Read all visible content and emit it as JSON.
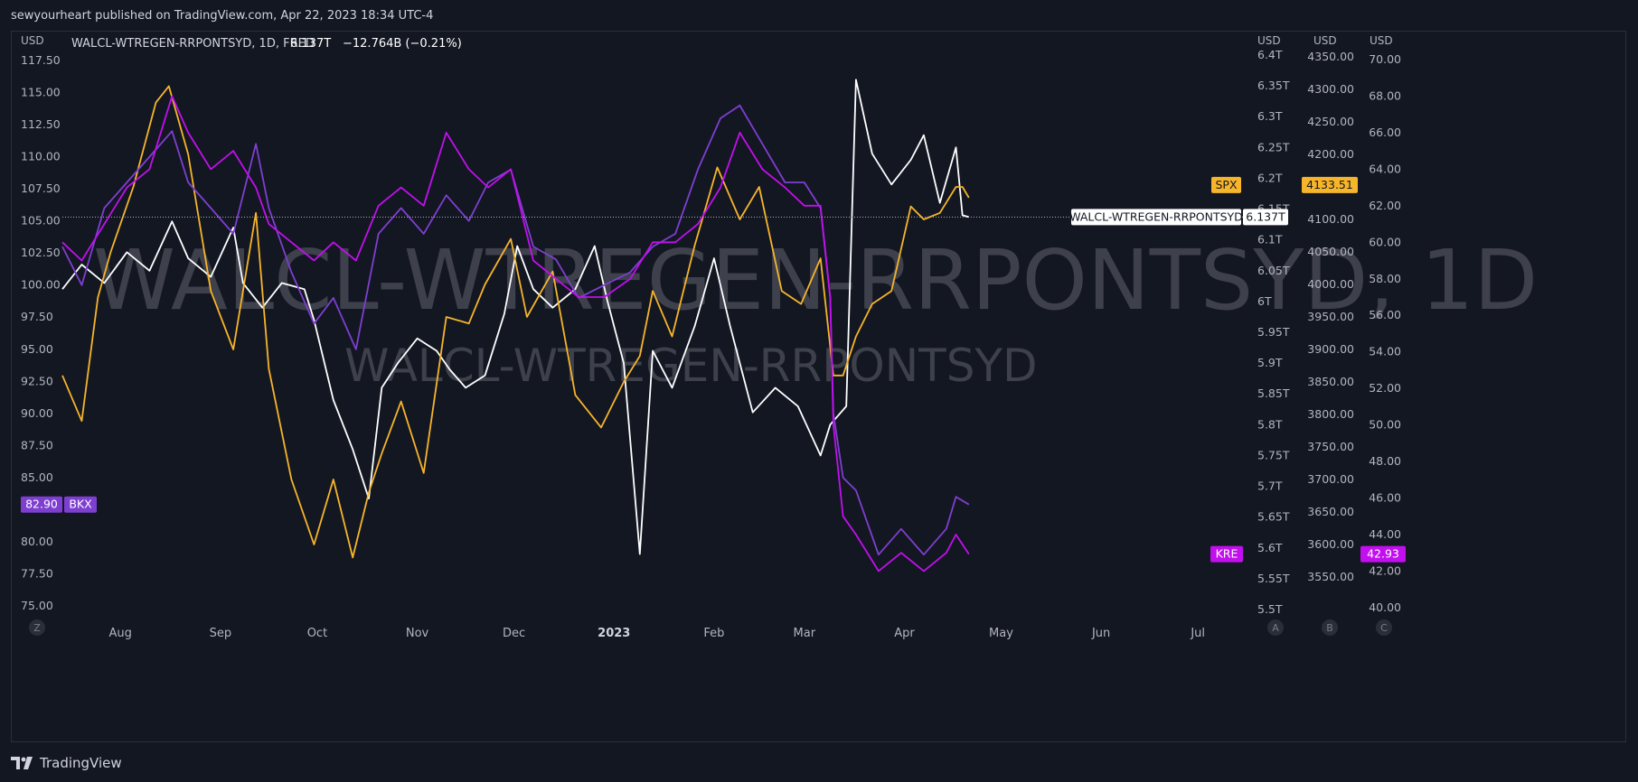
{
  "header": {
    "published": "sewyourheart published on TradingView.com, Apr 22, 2023 18:34 UTC-4"
  },
  "legend": {
    "symbol": "WALCL-WTREGEN-RRPONTSYD, 1D, FRED",
    "value": "6.137T",
    "change": "−12.764B (−0.21%)"
  },
  "watermark": {
    "main": "WALCL-WTREGEN-RRPONTSYD, 1D",
    "sub": "WALCL-WTREGEN-RRPONTSYD"
  },
  "footer": {
    "brand": "TradingView",
    "logo_icon": "tradingview-logo-icon"
  },
  "colors": {
    "background": "#131722",
    "spx": "#f7b52b",
    "bkx": "#7e3fd0",
    "kre": "#c20fee",
    "walcl": "#ffffff",
    "axis_text": "#b2b5be"
  },
  "chart_data": {
    "type": "line",
    "time_axis": {
      "labels": [
        "Aug",
        "Sep",
        "Oct",
        "Nov",
        "Dec",
        "2023",
        "Feb",
        "Mar",
        "Apr",
        "May",
        "Jun",
        "Jul"
      ],
      "range": [
        "2022-07-14",
        "2023-07-20"
      ]
    },
    "axes": {
      "left": {
        "unit": "USD",
        "ticks": [
          "117.50",
          "115.00",
          "112.50",
          "110.00",
          "107.50",
          "105.00",
          "102.50",
          "100.00",
          "97.50",
          "95.00",
          "92.50",
          "90.00",
          "87.50",
          "85.00",
          "80.00",
          "77.50",
          "75.00"
        ],
        "range": [
          75.0,
          117.5
        ]
      },
      "right_walcl": {
        "unit": "USD",
        "ticks": [
          "6.4T",
          "6.35T",
          "6.3T",
          "6.25T",
          "6.2T",
          "6.15T",
          "6.1T",
          "6.05T",
          "6T",
          "5.95T",
          "5.9T",
          "5.85T",
          "5.8T",
          "5.75T",
          "5.7T",
          "5.65T",
          "5.6T",
          "5.55T",
          "5.5T"
        ],
        "range": [
          5.5,
          6.4
        ]
      },
      "right_spx": {
        "unit": "USD",
        "ticks": [
          "4350.00",
          "4300.00",
          "4250.00",
          "4200.00",
          "4150.00",
          "4100.00",
          "4050.00",
          "4000.00",
          "3950.00",
          "3900.00",
          "3850.00",
          "3800.00",
          "3750.00",
          "3700.00",
          "3650.00",
          "3600.00",
          "3550.00"
        ],
        "range": [
          3500,
          4350
        ]
      },
      "right_kre": {
        "unit": "USD",
        "ticks": [
          "70.00",
          "68.00",
          "66.00",
          "64.00",
          "62.00",
          "60.00",
          "58.00",
          "56.00",
          "54.00",
          "52.00",
          "50.00",
          "48.00",
          "46.00",
          "44.00",
          "42.00",
          "40.00"
        ],
        "range": [
          39.5,
          70.0
        ]
      }
    },
    "scale_buttons_left": [
      "Z"
    ],
    "scale_buttons_right": [
      "A",
      "B",
      "C"
    ],
    "price_labels": [
      {
        "series": "BKX",
        "text": "BKX",
        "value": "82.90",
        "axis": "left"
      },
      {
        "series": "SPX",
        "text": "SPX",
        "value": "4133.51",
        "axis": "right_spx"
      },
      {
        "series": "WALCL",
        "text": "WALCL-WTREGEN-RRPONTSYD",
        "value": "6.137T",
        "axis": "right_walcl"
      },
      {
        "series": "KRE",
        "text": "KRE",
        "value": "42.93",
        "axis": "right_kre"
      }
    ],
    "series": [
      {
        "name": "WALCL-WTREGEN-RRPONTSYD",
        "axis": "right_walcl",
        "color": "#ffffff",
        "points": [
          [
            "2022-07-14",
            6.02
          ],
          [
            "2022-07-20",
            6.06
          ],
          [
            "2022-07-27",
            6.03
          ],
          [
            "2022-08-03",
            6.08
          ],
          [
            "2022-08-10",
            6.05
          ],
          [
            "2022-08-17",
            6.13
          ],
          [
            "2022-08-22",
            6.07
          ],
          [
            "2022-08-29",
            6.04
          ],
          [
            "2022-09-05",
            6.12
          ],
          [
            "2022-09-08",
            6.03
          ],
          [
            "2022-09-14",
            5.99
          ],
          [
            "2022-09-20",
            6.03
          ],
          [
            "2022-09-27",
            6.02
          ],
          [
            "2022-09-30",
            5.97
          ],
          [
            "2022-10-06",
            5.84
          ],
          [
            "2022-10-12",
            5.76
          ],
          [
            "2022-10-17",
            5.68
          ],
          [
            "2022-10-21",
            5.86
          ],
          [
            "2022-10-26",
            5.9
          ],
          [
            "2022-11-01",
            5.94
          ],
          [
            "2022-11-07",
            5.92
          ],
          [
            "2022-11-11",
            5.89
          ],
          [
            "2022-11-16",
            5.86
          ],
          [
            "2022-11-22",
            5.88
          ],
          [
            "2022-11-28",
            5.98
          ],
          [
            "2022-12-02",
            6.09
          ],
          [
            "2022-12-07",
            6.02
          ],
          [
            "2022-12-13",
            5.99
          ],
          [
            "2022-12-20",
            6.02
          ],
          [
            "2022-12-26",
            6.09
          ],
          [
            "2022-12-30",
            6.0
          ],
          [
            "2023-01-04",
            5.9
          ],
          [
            "2023-01-09",
            5.59
          ],
          [
            "2023-01-13",
            5.92
          ],
          [
            "2023-01-19",
            5.86
          ],
          [
            "2023-01-26",
            5.96
          ],
          [
            "2023-02-01",
            6.07
          ],
          [
            "2023-02-06",
            5.96
          ],
          [
            "2023-02-13",
            5.82
          ],
          [
            "2023-02-20",
            5.86
          ],
          [
            "2023-02-27",
            5.83
          ],
          [
            "2023-03-06",
            5.75
          ],
          [
            "2023-03-09",
            5.8
          ],
          [
            "2023-03-14",
            5.83
          ],
          [
            "2023-03-17",
            6.36
          ],
          [
            "2023-03-22",
            6.24
          ],
          [
            "2023-03-28",
            6.19
          ],
          [
            "2023-04-03",
            6.23
          ],
          [
            "2023-04-07",
            6.27
          ],
          [
            "2023-04-12",
            6.16
          ],
          [
            "2023-04-17",
            6.25
          ],
          [
            "2023-04-19",
            6.14
          ],
          [
            "2023-04-21",
            6.137
          ]
        ]
      },
      {
        "name": "SPX",
        "axis": "right_spx",
        "color": "#f7b52b",
        "points": [
          [
            "2022-07-14",
            3860
          ],
          [
            "2022-07-20",
            3790
          ],
          [
            "2022-07-25",
            3980
          ],
          [
            "2022-07-29",
            4050
          ],
          [
            "2022-08-05",
            4150
          ],
          [
            "2022-08-12",
            4280
          ],
          [
            "2022-08-16",
            4305
          ],
          [
            "2022-08-22",
            4200
          ],
          [
            "2022-08-29",
            3990
          ],
          [
            "2022-09-05",
            3900
          ],
          [
            "2022-09-12",
            4110
          ],
          [
            "2022-09-16",
            3870
          ],
          [
            "2022-09-23",
            3700
          ],
          [
            "2022-09-30",
            3600
          ],
          [
            "2022-10-06",
            3700
          ],
          [
            "2022-10-12",
            3580
          ],
          [
            "2022-10-17",
            3680
          ],
          [
            "2022-10-21",
            3740
          ],
          [
            "2022-10-27",
            3820
          ],
          [
            "2022-11-03",
            3710
          ],
          [
            "2022-11-10",
            3950
          ],
          [
            "2022-11-17",
            3940
          ],
          [
            "2022-11-22",
            4000
          ],
          [
            "2022-11-30",
            4070
          ],
          [
            "2022-12-05",
            3950
          ],
          [
            "2022-12-13",
            4020
          ],
          [
            "2022-12-20",
            3830
          ],
          [
            "2022-12-28",
            3780
          ],
          [
            "2023-01-04",
            3850
          ],
          [
            "2023-01-09",
            3890
          ],
          [
            "2023-01-13",
            3990
          ],
          [
            "2023-01-19",
            3920
          ],
          [
            "2023-01-26",
            4060
          ],
          [
            "2023-02-02",
            4180
          ],
          [
            "2023-02-09",
            4100
          ],
          [
            "2023-02-15",
            4150
          ],
          [
            "2023-02-22",
            3990
          ],
          [
            "2023-02-28",
            3970
          ],
          [
            "2023-03-06",
            4040
          ],
          [
            "2023-03-10",
            3860
          ],
          [
            "2023-03-13",
            3860
          ],
          [
            "2023-03-17",
            3920
          ],
          [
            "2023-03-22",
            3970
          ],
          [
            "2023-03-28",
            3990
          ],
          [
            "2023-04-03",
            4120
          ],
          [
            "2023-04-07",
            4100
          ],
          [
            "2023-04-12",
            4110
          ],
          [
            "2023-04-17",
            4150
          ],
          [
            "2023-04-19",
            4150
          ],
          [
            "2023-04-21",
            4133.51
          ]
        ]
      },
      {
        "name": "BKX",
        "axis": "left",
        "color": "#7e3fd0",
        "points": [
          [
            "2022-07-14",
            103
          ],
          [
            "2022-07-20",
            100
          ],
          [
            "2022-07-27",
            106
          ],
          [
            "2022-08-03",
            108
          ],
          [
            "2022-08-10",
            110
          ],
          [
            "2022-08-17",
            112
          ],
          [
            "2022-08-22",
            108
          ],
          [
            "2022-08-29",
            106
          ],
          [
            "2022-09-05",
            104
          ],
          [
            "2022-09-12",
            111
          ],
          [
            "2022-09-16",
            106
          ],
          [
            "2022-09-23",
            101
          ],
          [
            "2022-09-30",
            97
          ],
          [
            "2022-10-06",
            99
          ],
          [
            "2022-10-13",
            95
          ],
          [
            "2022-10-20",
            104
          ],
          [
            "2022-10-27",
            106
          ],
          [
            "2022-11-03",
            104
          ],
          [
            "2022-11-10",
            107
          ],
          [
            "2022-11-17",
            105
          ],
          [
            "2022-11-23",
            108
          ],
          [
            "2022-11-30",
            109
          ],
          [
            "2022-12-07",
            103
          ],
          [
            "2022-12-14",
            102
          ],
          [
            "2022-12-21",
            99
          ],
          [
            "2022-12-29",
            100
          ],
          [
            "2023-01-06",
            101
          ],
          [
            "2023-01-13",
            103
          ],
          [
            "2023-01-20",
            104
          ],
          [
            "2023-01-27",
            109
          ],
          [
            "2023-02-03",
            113
          ],
          [
            "2023-02-09",
            114
          ],
          [
            "2023-02-16",
            111
          ],
          [
            "2023-02-23",
            108
          ],
          [
            "2023-03-01",
            108
          ],
          [
            "2023-03-06",
            106
          ],
          [
            "2023-03-09",
            99
          ],
          [
            "2023-03-10",
            90
          ],
          [
            "2023-03-13",
            85
          ],
          [
            "2023-03-17",
            84
          ],
          [
            "2023-03-24",
            79
          ],
          [
            "2023-03-31",
            81
          ],
          [
            "2023-04-07",
            79
          ],
          [
            "2023-04-14",
            81
          ],
          [
            "2023-04-17",
            83.5
          ],
          [
            "2023-04-21",
            82.9
          ]
        ]
      },
      {
        "name": "KRE",
        "axis": "right_kre",
        "color": "#c20fee",
        "points": [
          [
            "2022-07-14",
            60
          ],
          [
            "2022-07-20",
            59
          ],
          [
            "2022-07-27",
            61
          ],
          [
            "2022-08-03",
            63
          ],
          [
            "2022-08-10",
            64
          ],
          [
            "2022-08-17",
            68
          ],
          [
            "2022-08-22",
            66
          ],
          [
            "2022-08-29",
            64
          ],
          [
            "2022-09-05",
            65
          ],
          [
            "2022-09-12",
            63
          ],
          [
            "2022-09-16",
            61
          ],
          [
            "2022-09-23",
            60
          ],
          [
            "2022-09-30",
            59
          ],
          [
            "2022-10-06",
            60
          ],
          [
            "2022-10-13",
            59
          ],
          [
            "2022-10-20",
            62
          ],
          [
            "2022-10-27",
            63
          ],
          [
            "2022-11-03",
            62
          ],
          [
            "2022-11-10",
            66
          ],
          [
            "2022-11-17",
            64
          ],
          [
            "2022-11-23",
            63
          ],
          [
            "2022-11-30",
            64
          ],
          [
            "2022-12-07",
            59
          ],
          [
            "2022-12-14",
            58
          ],
          [
            "2022-12-21",
            57
          ],
          [
            "2022-12-29",
            57
          ],
          [
            "2023-01-06",
            58
          ],
          [
            "2023-01-13",
            60
          ],
          [
            "2023-01-20",
            60
          ],
          [
            "2023-01-27",
            61
          ],
          [
            "2023-02-03",
            63
          ],
          [
            "2023-02-09",
            66
          ],
          [
            "2023-02-16",
            64
          ],
          [
            "2023-02-23",
            63
          ],
          [
            "2023-03-01",
            62
          ],
          [
            "2023-03-06",
            62
          ],
          [
            "2023-03-09",
            57
          ],
          [
            "2023-03-10",
            50
          ],
          [
            "2023-03-13",
            45
          ],
          [
            "2023-03-17",
            44
          ],
          [
            "2023-03-24",
            42
          ],
          [
            "2023-03-31",
            43
          ],
          [
            "2023-04-07",
            42
          ],
          [
            "2023-04-14",
            43
          ],
          [
            "2023-04-17",
            44
          ],
          [
            "2023-04-21",
            42.93
          ]
        ]
      }
    ]
  }
}
